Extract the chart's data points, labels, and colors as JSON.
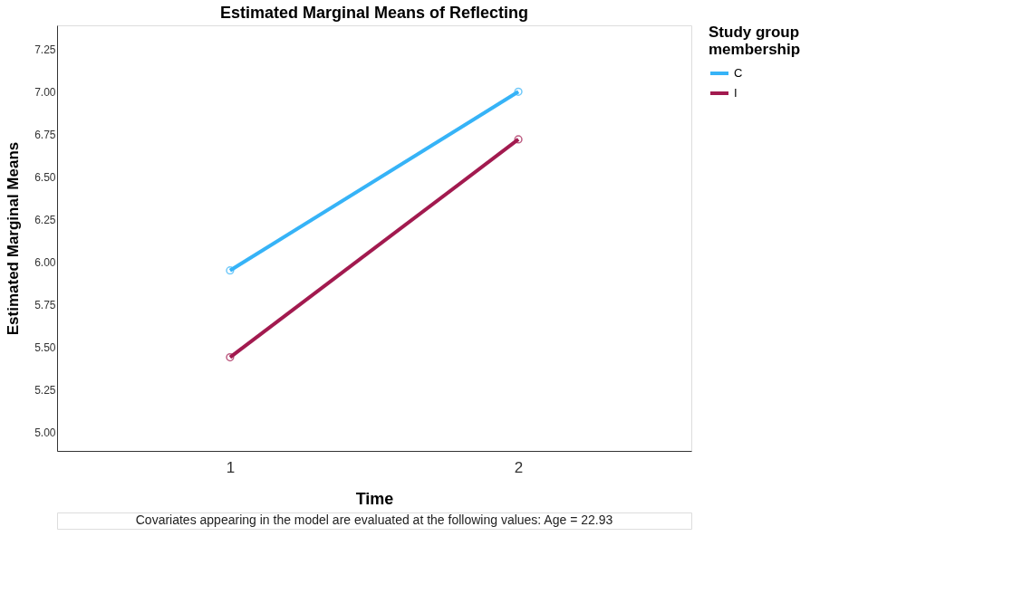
{
  "chart_data": {
    "type": "line",
    "title": "Estimated Marginal Means of Reflecting",
    "xlabel": "Time",
    "ylabel": "Estimated Marginal Means",
    "legend_title": "Study group membership",
    "categories": [
      "1",
      "2"
    ],
    "series": [
      {
        "name": "C",
        "color": "#36b3f7",
        "values": [
          5.95,
          7.0
        ]
      },
      {
        "name": "I",
        "color": "#a21a4f",
        "values": [
          5.44,
          6.72
        ]
      }
    ],
    "ylim": [
      4.89,
      7.39
    ],
    "yticks": [
      {
        "value": 5,
        "label": "5.00"
      },
      {
        "value": 5.25,
        "label": "5.25"
      },
      {
        "value": 5.5,
        "label": "5.50"
      },
      {
        "value": 5.75,
        "label": "5.75"
      },
      {
        "value": 6,
        "label": "6.00"
      },
      {
        "value": 6.25,
        "label": "6.25"
      },
      {
        "value": 6.5,
        "label": "6.50"
      },
      {
        "value": 6.75,
        "label": "6.75"
      },
      {
        "value": 7,
        "label": "7.00"
      },
      {
        "value": 7.25,
        "label": "7.25"
      }
    ],
    "grid": false,
    "legend": "top right",
    "marker": "circle",
    "line_style": "solid",
    "annotations": [
      "Covariates appearing in the model are evaluated at the following values: Age = 22.93"
    ]
  }
}
